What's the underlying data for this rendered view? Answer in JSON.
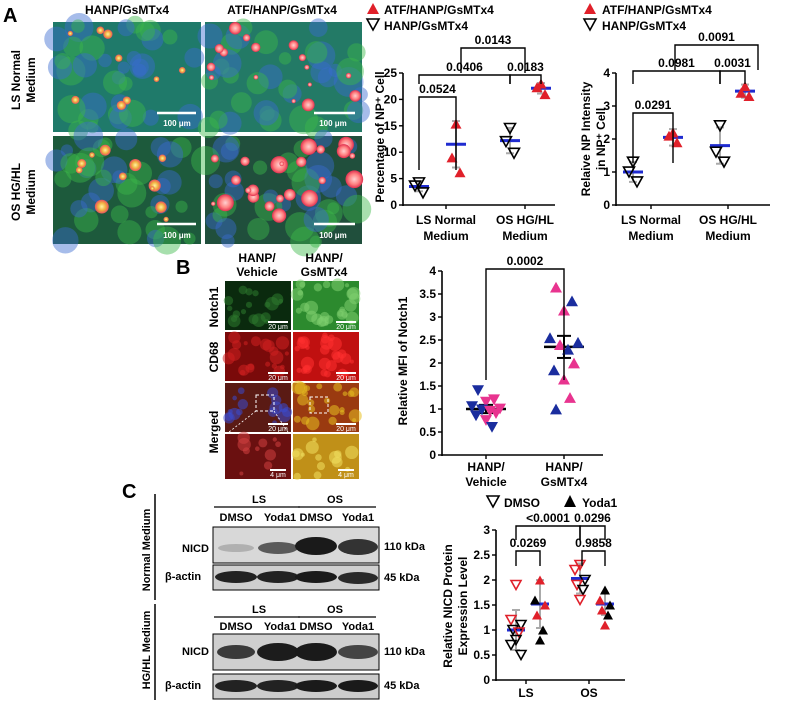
{
  "colors": {
    "pink": "#e8348f",
    "navy": "#1a2d9e",
    "red": "#e0202a",
    "blue": "#1f2bd0",
    "gray": "#aaaaaa",
    "black": "#000000"
  },
  "panel_A": {
    "letter": "A",
    "micro": {
      "col_labels": [
        "HANP/GsMTx4",
        "ATF/HANP/GsMTx4"
      ],
      "row_labels": [
        [
          "LS Normal",
          "Medium"
        ],
        [
          "OS HG/HL",
          "Medium"
        ]
      ],
      "scalebar": "100 μm"
    },
    "legend": [
      "ATF/HANP/GsMTx4",
      "HANP/GsMTx4"
    ]
  },
  "panel_B": {
    "letter": "B",
    "col_labels": [
      [
        "HANP/",
        "Vehicle"
      ],
      [
        "HANP/",
        "GsMTx4"
      ]
    ],
    "row_labels": [
      "Notch1",
      "CD68",
      "Merged"
    ],
    "scalebar_a": "20 μm",
    "scalebar_b": "4 μm"
  },
  "panel_C": {
    "letter": "C",
    "blot1": {
      "side_label": "Normal Medium",
      "groups": [
        "LS",
        "OS"
      ],
      "lanes": [
        "DMSO",
        "Yoda1",
        "DMSO",
        "Yoda1"
      ],
      "rows": [
        "NICD",
        "β-actin"
      ],
      "kda": [
        "110 kDa",
        "45 kDa"
      ]
    },
    "blot2": {
      "side_label": "HG/HL Medium",
      "groups": [
        "LS",
        "OS"
      ],
      "lanes": [
        "DMSO",
        "Yoda1",
        "DMSO",
        "Yoda1"
      ],
      "rows": [
        "NICD",
        "β-actin"
      ],
      "kda": [
        "110 kDa",
        "45 kDa"
      ]
    },
    "legend": [
      "DMSO",
      "Yoda1"
    ]
  },
  "chart_data": [
    {
      "type": "scatter",
      "ylabel": "Percentage of NP⁺ Cell",
      "categories": [
        [
          "LS Normal",
          "Medium"
        ],
        [
          "OS HG/HL",
          "Medium"
        ]
      ],
      "ylim": [
        0,
        25
      ],
      "yticks": [
        0,
        5,
        10,
        15,
        20,
        25
      ],
      "series": [
        {
          "name": "HANP/GsMTx4",
          "marker": "open-triangle-down",
          "color": "#000000",
          "points": [
            {
              "cat": 0,
              "y": 4.2
            },
            {
              "cat": 0,
              "y": 3.6
            },
            {
              "cat": 0,
              "y": 2.3
            },
            {
              "cat": 1,
              "y": 14.5
            },
            {
              "cat": 1,
              "y": 12.0
            },
            {
              "cat": 1,
              "y": 9.8
            }
          ],
          "mean": [
            3.5,
            12.2
          ],
          "sd": [
            0.9,
            2.4
          ]
        },
        {
          "name": "ATF/HANP/GsMTx4",
          "marker": "filled-triangle-up",
          "color": "#e0202a",
          "points": [
            {
              "cat": 0,
              "y": 15.4
            },
            {
              "cat": 0,
              "y": 9.0
            },
            {
              "cat": 0,
              "y": 6.2
            },
            {
              "cat": 1,
              "y": 23.0
            },
            {
              "cat": 1,
              "y": 22.3
            },
            {
              "cat": 1,
              "y": 21.0
            }
          ],
          "mean": [
            11.5,
            22.1
          ],
          "sd": [
            4.4,
            1.0
          ]
        }
      ],
      "annotations": [
        "0.0524",
        "0.0406",
        "0.0183",
        "0.0143"
      ]
    },
    {
      "type": "scatter",
      "ylabel": "Relaive NP Intensity in NP⁺ Cell",
      "categories": [
        [
          "LS Normal",
          "Medium"
        ],
        [
          "OS HG/HL",
          "Medium"
        ]
      ],
      "ylim": [
        0,
        4
      ],
      "yticks": [
        0,
        1,
        2,
        3,
        4
      ],
      "series": [
        {
          "name": "HANP/GsMTx4",
          "marker": "open-triangle-down",
          "color": "#000000",
          "points": [
            {
              "cat": 0,
              "y": 1.3
            },
            {
              "cat": 0,
              "y": 1.0
            },
            {
              "cat": 0,
              "y": 0.7
            },
            {
              "cat": 1,
              "y": 2.4
            },
            {
              "cat": 1,
              "y": 1.6
            },
            {
              "cat": 1,
              "y": 1.3
            }
          ],
          "mean": [
            1.0,
            1.8
          ],
          "sd": [
            0.3,
            0.55
          ]
        },
        {
          "name": "ATF/HANP/GsMTx4",
          "marker": "filled-triangle-up",
          "color": "#e0202a",
          "points": [
            {
              "cat": 0,
              "y": 2.2
            },
            {
              "cat": 0,
              "y": 2.1
            },
            {
              "cat": 0,
              "y": 1.9
            },
            {
              "cat": 1,
              "y": 3.6
            },
            {
              "cat": 1,
              "y": 3.4
            },
            {
              "cat": 1,
              "y": 3.3
            }
          ],
          "mean": [
            2.05,
            3.45
          ],
          "sd": [
            0.25,
            0.2
          ]
        }
      ],
      "annotations": [
        "0.0291",
        "0.0981",
        "0.0031",
        "0.0091"
      ]
    },
    {
      "type": "scatter",
      "ylabel": "Relative MFI of Notch1",
      "categories": [
        [
          "HANP/",
          "Vehicle"
        ],
        [
          "HANP/",
          "GsMTx4"
        ]
      ],
      "ylim": [
        0,
        4
      ],
      "yticks": [
        0,
        0.5,
        1.0,
        1.5,
        2.0,
        2.5,
        3.0,
        3.5,
        4.0
      ],
      "groups": [
        {
          "cat": 0,
          "mean": 1.0,
          "sem": 0.09,
          "points": [
            {
              "y": 1.4,
              "shape": "down",
              "c": "navy"
            },
            {
              "y": 1.2,
              "shape": "down",
              "c": "pink"
            },
            {
              "y": 1.15,
              "shape": "down",
              "c": "pink"
            },
            {
              "y": 1.05,
              "shape": "down",
              "c": "navy"
            },
            {
              "y": 1.0,
              "shape": "down",
              "c": "pink"
            },
            {
              "y": 0.98,
              "shape": "down",
              "c": "navy"
            },
            {
              "y": 0.95,
              "shape": "down",
              "c": "pink"
            },
            {
              "y": 0.9,
              "shape": "down",
              "c": "pink"
            },
            {
              "y": 0.85,
              "shape": "down",
              "c": "navy"
            },
            {
              "y": 0.75,
              "shape": "down",
              "c": "pink"
            },
            {
              "y": 0.6,
              "shape": "down",
              "c": "navy"
            }
          ]
        },
        {
          "cat": 1,
          "mean": 2.35,
          "sem": 0.24,
          "points": [
            {
              "y": 3.65,
              "shape": "up",
              "c": "pink"
            },
            {
              "y": 3.35,
              "shape": "up",
              "c": "navy"
            },
            {
              "y": 3.15,
              "shape": "up",
              "c": "pink"
            },
            {
              "y": 2.55,
              "shape": "up",
              "c": "navy"
            },
            {
              "y": 2.45,
              "shape": "up",
              "c": "navy"
            },
            {
              "y": 2.4,
              "shape": "up",
              "c": "pink"
            },
            {
              "y": 2.3,
              "shape": "up",
              "c": "navy"
            },
            {
              "y": 2.0,
              "shape": "up",
              "c": "pink"
            },
            {
              "y": 1.85,
              "shape": "up",
              "c": "navy"
            },
            {
              "y": 1.65,
              "shape": "up",
              "c": "pink"
            },
            {
              "y": 1.25,
              "shape": "up",
              "c": "pink"
            },
            {
              "y": 1.0,
              "shape": "up",
              "c": "navy"
            }
          ]
        }
      ],
      "annotations": [
        "0.0002"
      ]
    },
    {
      "type": "scatter",
      "ylabel": "Relative NICD Protein Expression Level",
      "categories": [
        "LS",
        "OS"
      ],
      "ylim": [
        0,
        3
      ],
      "yticks": [
        0,
        0.5,
        1.0,
        1.5,
        2.0,
        2.5,
        3.0
      ],
      "series": [
        {
          "name": "DMSO",
          "marker": "open-triangle-down",
          "points": [
            {
              "cat": 0,
              "y": 1.9,
              "c": "red"
            },
            {
              "cat": 0,
              "y": 1.2,
              "c": "red"
            },
            {
              "cat": 0,
              "y": 1.1,
              "c": "black"
            },
            {
              "cat": 0,
              "y": 1.0,
              "c": "black"
            },
            {
              "cat": 0,
              "y": 0.95,
              "c": "red"
            },
            {
              "cat": 0,
              "y": 0.8,
              "c": "black"
            },
            {
              "cat": 0,
              "y": 0.7,
              "c": "black"
            },
            {
              "cat": 0,
              "y": 0.5,
              "c": "black"
            },
            {
              "cat": 1,
              "y": 2.3,
              "c": "red"
            },
            {
              "cat": 1,
              "y": 2.2,
              "c": "red"
            },
            {
              "cat": 1,
              "y": 2.0,
              "c": "black"
            },
            {
              "cat": 1,
              "y": 1.9,
              "c": "red"
            },
            {
              "cat": 1,
              "y": 1.8,
              "c": "black"
            },
            {
              "cat": 1,
              "y": 1.6,
              "c": "red"
            }
          ],
          "mean": [
            1.0,
            2.03
          ],
          "sd": [
            0.4,
            0.3
          ]
        },
        {
          "name": "Yoda1",
          "marker": "filled-triangle-up",
          "points": [
            {
              "cat": 0,
              "y": 2.0,
              "c": "red"
            },
            {
              "cat": 0,
              "y": 1.6,
              "c": "black"
            },
            {
              "cat": 0,
              "y": 1.5,
              "c": "red"
            },
            {
              "cat": 0,
              "y": 1.3,
              "c": "red"
            },
            {
              "cat": 0,
              "y": 1.0,
              "c": "black"
            },
            {
              "cat": 0,
              "y": 0.8,
              "c": "black"
            },
            {
              "cat": 1,
              "y": 1.8,
              "c": "black"
            },
            {
              "cat": 1,
              "y": 1.6,
              "c": "red"
            },
            {
              "cat": 1,
              "y": 1.5,
              "c": "black"
            },
            {
              "cat": 1,
              "y": 1.4,
              "c": "red"
            },
            {
              "cat": 1,
              "y": 1.3,
              "c": "black"
            },
            {
              "cat": 1,
              "y": 1.1,
              "c": "red"
            }
          ],
          "mean": [
            1.52,
            1.52
          ],
          "sd": [
            0.48,
            0.22
          ]
        }
      ],
      "annotations": [
        "<0.0001",
        "0.0296",
        "0.0269",
        "0.9858"
      ]
    }
  ]
}
